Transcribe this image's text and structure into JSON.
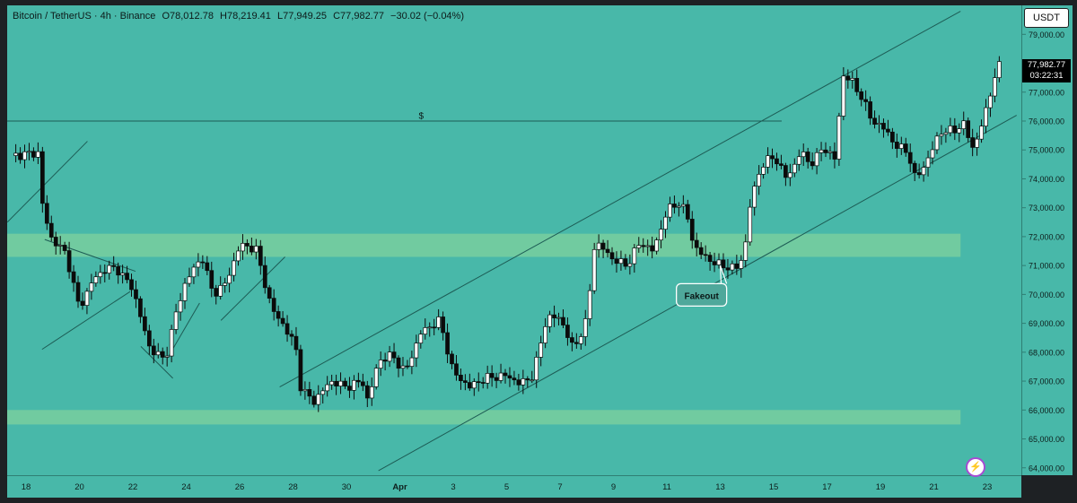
{
  "legend": {
    "symbol": "Bitcoin / TetherUS · 4h · Binance",
    "open": "O78,012.78",
    "high": "H78,219.41",
    "low": "L77,949.25",
    "close": "C77,982.77",
    "change": "−30.02 (−0.04%)"
  },
  "currency_button": "USDT",
  "last_price": "77,982.77",
  "countdown": "03:22:31",
  "colors": {
    "background": "#48b8a9",
    "candle": "#0b0b0b",
    "zone": "#7ccf9e",
    "line": "#1d5c55"
  },
  "icons": [
    "lightning-icon"
  ],
  "chart_data": {
    "type": "candlestick",
    "title": "",
    "xlabel": "",
    "ylabel": "",
    "ylim": [
      63500,
      79500
    ],
    "y_ticks": [
      "79,000.00",
      "78,000.00",
      "77,000.00",
      "76,000.00",
      "75,000.00",
      "74,000.00",
      "73,000.00",
      "72,000.00",
      "71,000.00",
      "70,000.00",
      "69,000.00",
      "68,000.00",
      "67,000.00",
      "66,000.00",
      "65,000.00",
      "64,000.00"
    ],
    "x_ticks": [
      {
        "label": "18",
        "day": 0
      },
      {
        "label": "20",
        "day": 2
      },
      {
        "label": "22",
        "day": 4
      },
      {
        "label": "24",
        "day": 6
      },
      {
        "label": "26",
        "day": 8
      },
      {
        "label": "28",
        "day": 10
      },
      {
        "label": "30",
        "day": 12
      },
      {
        "label": "Apr",
        "day": 14
      },
      {
        "label": "3",
        "day": 16
      },
      {
        "label": "5",
        "day": 18
      },
      {
        "label": "7",
        "day": 20
      },
      {
        "label": "9",
        "day": 22
      },
      {
        "label": "11",
        "day": 24
      },
      {
        "label": "13",
        "day": 26
      },
      {
        "label": "15",
        "day": 28
      },
      {
        "label": "17",
        "day": 30
      },
      {
        "label": "19",
        "day": 32
      },
      {
        "label": "21",
        "day": 34
      },
      {
        "label": "23",
        "day": 36
      }
    ],
    "price_path": [
      [
        -0.6,
        74800
      ],
      [
        0.5,
        74900
      ],
      [
        0.6,
        73200
      ],
      [
        0.9,
        72000
      ],
      [
        1.5,
        71400
      ],
      [
        2.0,
        69500
      ],
      [
        2.5,
        70500
      ],
      [
        3.0,
        70900
      ],
      [
        3.4,
        70900
      ],
      [
        4.0,
        70200
      ],
      [
        4.6,
        68200
      ],
      [
        5.2,
        67700
      ],
      [
        5.6,
        69300
      ],
      [
        6.0,
        70500
      ],
      [
        6.6,
        71300
      ],
      [
        7.0,
        70000
      ],
      [
        7.5,
        70400
      ],
      [
        8.0,
        71700
      ],
      [
        8.6,
        71600
      ],
      [
        9.2,
        69500
      ],
      [
        9.6,
        69000
      ],
      [
        10.1,
        68200
      ],
      [
        10.3,
        66700
      ],
      [
        10.8,
        66300
      ],
      [
        11.4,
        67000
      ],
      [
        12.0,
        66800
      ],
      [
        12.6,
        67000
      ],
      [
        12.8,
        66300
      ],
      [
        13.2,
        67700
      ],
      [
        13.7,
        67900
      ],
      [
        14.2,
        67300
      ],
      [
        14.8,
        68700
      ],
      [
        15.5,
        69100
      ],
      [
        16.0,
        67300
      ],
      [
        16.6,
        66800
      ],
      [
        17.2,
        67100
      ],
      [
        18.0,
        67200
      ],
      [
        18.5,
        66900
      ],
      [
        19.0,
        67200
      ],
      [
        19.5,
        69200
      ],
      [
        20.0,
        69200
      ],
      [
        20.5,
        68100
      ],
      [
        21.0,
        69100
      ],
      [
        21.3,
        71800
      ],
      [
        21.6,
        71600
      ],
      [
        22.0,
        71200
      ],
      [
        22.5,
        71000
      ],
      [
        23.0,
        71800
      ],
      [
        23.5,
        71500
      ],
      [
        24.0,
        72900
      ],
      [
        24.5,
        73200
      ],
      [
        24.8,
        72600
      ],
      [
        25.0,
        71700
      ],
      [
        25.4,
        71300
      ],
      [
        26.0,
        71000
      ],
      [
        26.6,
        70900
      ],
      [
        26.9,
        71400
      ],
      [
        27.1,
        73000
      ],
      [
        27.5,
        74400
      ],
      [
        28.0,
        74800
      ],
      [
        28.5,
        74000
      ],
      [
        29.0,
        74900
      ],
      [
        29.5,
        74500
      ],
      [
        29.8,
        75100
      ],
      [
        30.3,
        74700
      ],
      [
        30.6,
        77600
      ],
      [
        31.0,
        77300
      ],
      [
        31.3,
        76800
      ],
      [
        31.7,
        76000
      ],
      [
        32.2,
        75700
      ],
      [
        32.6,
        75100
      ],
      [
        33.0,
        75000
      ],
      [
        33.3,
        74000
      ],
      [
        33.8,
        74700
      ],
      [
        34.2,
        75600
      ],
      [
        34.8,
        75700
      ],
      [
        35.1,
        75900
      ],
      [
        35.5,
        75000
      ],
      [
        35.9,
        76200
      ],
      [
        36.3,
        77600
      ],
      [
        36.5,
        77990
      ]
    ],
    "zones": [
      [
        71300,
        72100
      ],
      [
        65500,
        66000
      ]
    ],
    "resistance_line": 76000,
    "trend_channel": {
      "upper": [
        [
          9.5,
          66800
        ],
        [
          35.0,
          79800
        ]
      ],
      "lower": [
        [
          13.2,
          63900
        ],
        [
          37.1,
          76200
        ]
      ]
    },
    "annotations": [
      {
        "text": "$",
        "day": 14.8,
        "price": 76200
      },
      {
        "text": "Fakeout",
        "day": 25.4,
        "price": 70000
      }
    ]
  }
}
